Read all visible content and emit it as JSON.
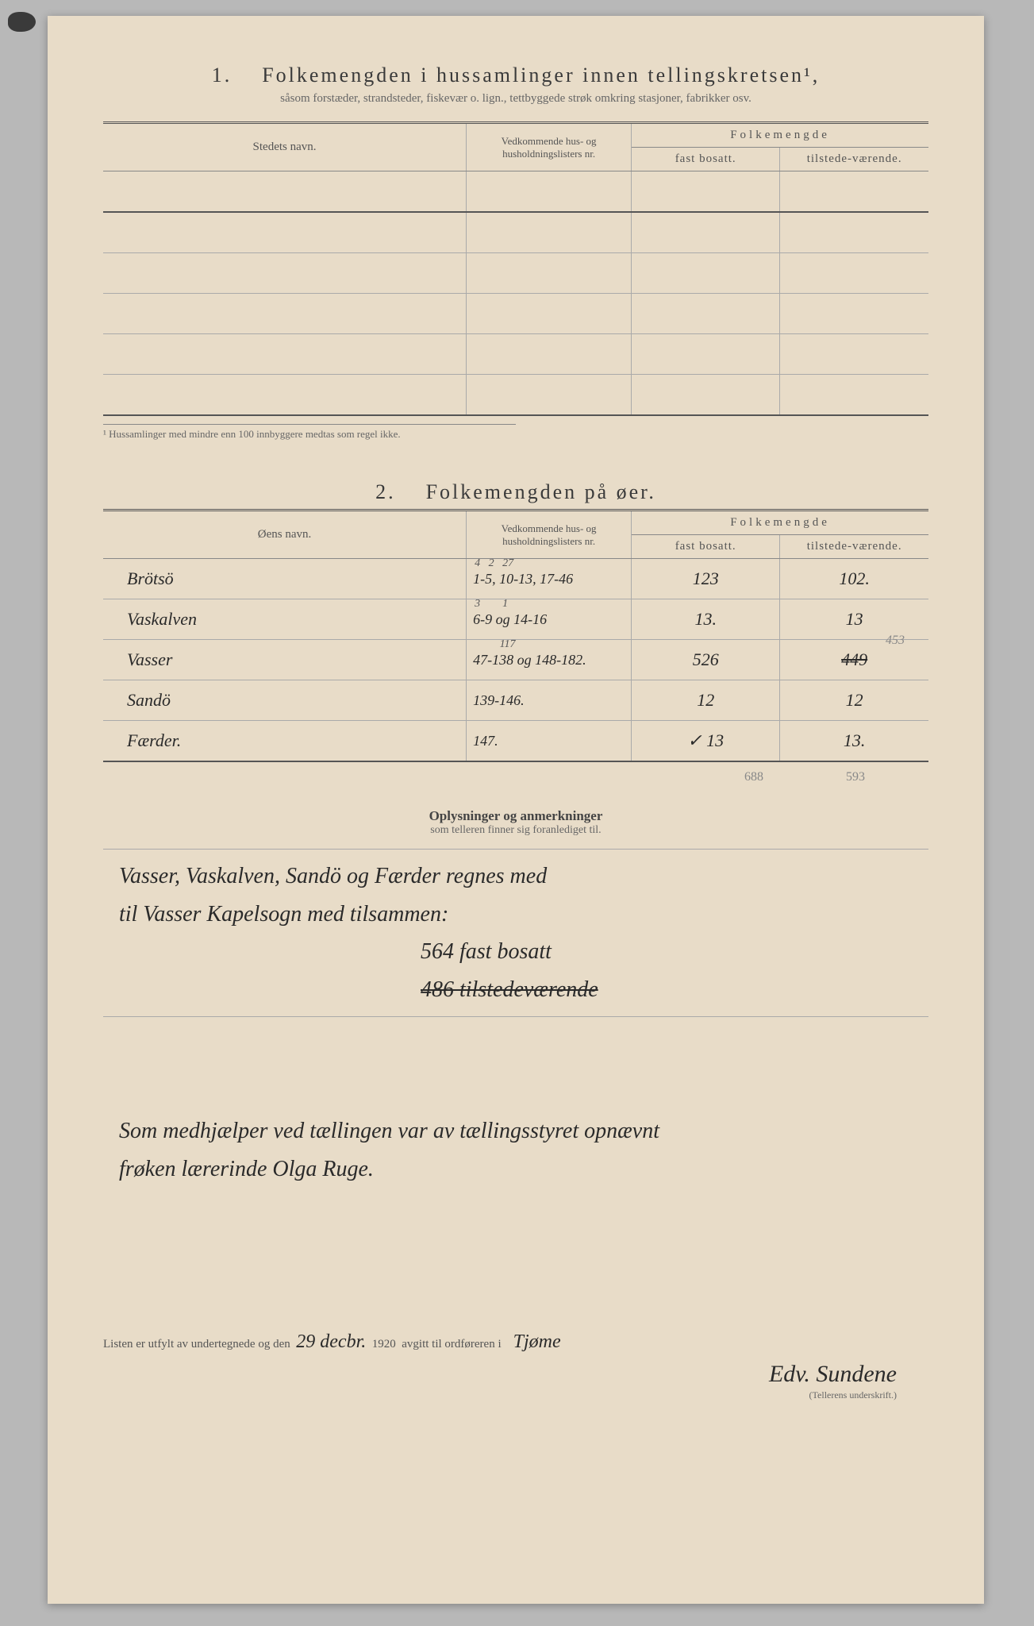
{
  "section1": {
    "number": "1.",
    "title": "Folkemengden i hussamlinger innen tellingskretsen¹,",
    "subtitle": "såsom forstæder, strandsteder, fiskevær o. lign., tettbyggede strøk omkring stasjoner, fabrikker osv.",
    "headers": {
      "name": "Stedets navn.",
      "nr": "Vedkommende hus- og husholdningslisters nr.",
      "pop": "Folkemengde",
      "fast": "fast bosatt.",
      "til": "tilstede-værende."
    },
    "footnote": "¹  Hussamlinger med mindre enn 100 innbyggere medtas som regel ikke."
  },
  "section2": {
    "number": "2.",
    "title": "Folkemengden på øer.",
    "headers": {
      "name": "Øens navn.",
      "nr": "Vedkommende hus- og husholdningslisters nr.",
      "pop": "Folkemengde",
      "fast": "fast bosatt.",
      "til": "tilstede-værende."
    },
    "rows": [
      {
        "name": "Brötsö",
        "nr_sup": "4   2   27",
        "nr": "1-5, 10-13, 17-46",
        "fast": "123",
        "til": "102."
      },
      {
        "name": "Vaskalven",
        "nr_sup": "3        1",
        "nr": "6-9 og 14-16",
        "fast": "13.",
        "til": "13"
      },
      {
        "name": "Vasser",
        "nr_sup": "         117",
        "nr": "47-138 og 148-182.",
        "fast": "526",
        "til": "449",
        "til_corr": "453"
      },
      {
        "name": "Sandö",
        "nr_sup": "",
        "nr": "139-146.",
        "fast": "12",
        "til": "12"
      },
      {
        "name": "Færder.",
        "nr_sup": "",
        "nr": "147.",
        "fast": "✓  13",
        "til": "13."
      }
    ],
    "totals": {
      "fast": "688",
      "til": "593"
    }
  },
  "remarks": {
    "title": "Oplysninger og anmerkninger",
    "subtitle": "som telleren finner sig foranlediget til.",
    "lines": [
      "Vasser, Vaskalven, Sandö og Færder regnes med",
      "til Vasser Kapelsogn med tilsammen:"
    ],
    "totals": [
      "564 fast bosatt",
      "486 tilstedeværende"
    ],
    "total_strike": true,
    "helper_lines": [
      "Som medhjælper ved tællingen var av tællingsstyret opnævnt",
      "frøken lærerinde Olga Ruge."
    ]
  },
  "footer": {
    "text_before": "Listen er utfylt av undertegnede og den",
    "date": "29 decbr.",
    "year": "1920",
    "text_mid": "avgitt til ordføreren i",
    "place": "Tjøme",
    "signature": "Edv. Sundene",
    "sig_label": "(Tellerens underskrift.)"
  }
}
